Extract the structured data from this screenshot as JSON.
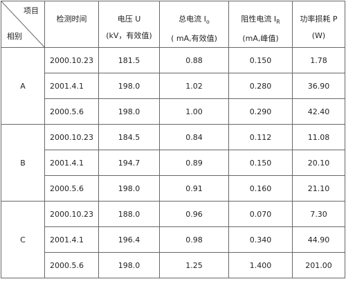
{
  "header": {
    "corner_top": "项目",
    "corner_bottom": "相别",
    "columns": [
      {
        "label": "检测时间"
      },
      {
        "label": "电压 U",
        "unit": "(kV，有效值)"
      },
      {
        "label": "总电流 I",
        "sub": "o",
        "unit": "( mA,有效值)"
      },
      {
        "label": "阻性电流 I",
        "sub": "R",
        "unit": "(mA,峰值)"
      },
      {
        "label": "功率损耗 P",
        "unit": "(W)"
      }
    ]
  },
  "groups": [
    {
      "phase": "A",
      "rows": [
        [
          "2000.10.23",
          "181.5",
          "0.88",
          "0.150",
          "1.78"
        ],
        [
          "2001.4.1",
          "198.0",
          "1.02",
          "0.280",
          "36.90"
        ],
        [
          "2000.5.6",
          "198.0",
          "1.00",
          "0.290",
          "42.40"
        ]
      ]
    },
    {
      "phase": "B",
      "rows": [
        [
          "2000.10.23",
          "184.5",
          "0.84",
          "0.112",
          "11.08"
        ],
        [
          "2001.4.1",
          "194.7",
          "0.89",
          "0.150",
          "20.10"
        ],
        [
          "2000.5.6",
          "198.0",
          "0.91",
          "0.160",
          "21.10"
        ]
      ]
    },
    {
      "phase": "C",
      "rows": [
        [
          "2000.10.23",
          "188.0",
          "0.96",
          "0.070",
          "7.30"
        ],
        [
          "2001.4.1",
          "196.4",
          "0.98",
          "0.340",
          "44.90"
        ],
        [
          "2000.5.6",
          "198.0",
          "1.25",
          "1.400",
          "201.00"
        ]
      ]
    }
  ]
}
